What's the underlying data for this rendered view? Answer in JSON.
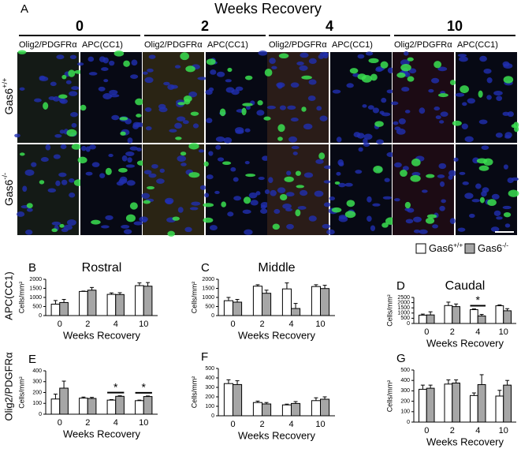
{
  "figure": {
    "panel_a": "A",
    "header": "Weeks Recovery",
    "timepoints": [
      "0",
      "2",
      "4",
      "10"
    ],
    "stains": [
      "Olig2/PDGFRα",
      "APC(CC1)"
    ],
    "genotypes": [
      {
        "label": "Gas6",
        "sup": "+/+"
      },
      {
        "label": "Gas6",
        "sup": "-/-"
      }
    ],
    "row_labels": [
      "APC(CC1)",
      "Olig2/PDGFRα"
    ],
    "legend": [
      {
        "label": "Gas6",
        "sup": "+/+",
        "color": "#ffffff"
      },
      {
        "label": "Gas6",
        "sup": "-/-",
        "color": "#a6a6a6"
      }
    ]
  },
  "chart_data": [
    {
      "type": "bar",
      "panel": "B",
      "title": "Rostral",
      "ylabel": "Cells/mm²",
      "xlabel": "Weeks Recovery",
      "categories": [
        "0",
        "2",
        "4",
        "10"
      ],
      "ylim": [
        0,
        2000
      ],
      "yticks": [
        0,
        500,
        1000,
        1500,
        2000
      ],
      "series": [
        {
          "color": "#ffffff",
          "values": [
            630,
            1330,
            1170,
            1650
          ],
          "errors": [
            200,
            20,
            80,
            150
          ]
        },
        {
          "color": "#a6a6a6",
          "values": [
            720,
            1400,
            1160,
            1620
          ],
          "errors": [
            170,
            150,
            100,
            200
          ]
        }
      ]
    },
    {
      "type": "bar",
      "panel": "C",
      "title": "Middle",
      "ylabel": "Cells/mm²",
      "xlabel": "Weeks Recovery",
      "categories": [
        "0",
        "2",
        "4",
        "10"
      ],
      "ylim": [
        0,
        2000
      ],
      "yticks": [
        0,
        500,
        1000,
        1500,
        2000
      ],
      "series": [
        {
          "color": "#ffffff",
          "values": [
            820,
            1620,
            1470,
            1600
          ],
          "errors": [
            180,
            80,
            330,
            100
          ]
        },
        {
          "color": "#a6a6a6",
          "values": [
            740,
            1230,
            390,
            1490
          ],
          "errors": [
            150,
            170,
            280,
            180
          ]
        }
      ]
    },
    {
      "type": "bar",
      "panel": "D",
      "title": "Caudal",
      "ylabel": "Cells/mm²",
      "xlabel": "Weeks Recovery",
      "categories": [
        "0",
        "2",
        "4",
        "10"
      ],
      "ylim": [
        0,
        2500
      ],
      "yticks": [
        0,
        500,
        1000,
        1500,
        2000,
        2500
      ],
      "series": [
        {
          "color": "#ffffff",
          "values": [
            800,
            1720,
            1330,
            1700
          ],
          "errors": [
            100,
            330,
            70,
            80
          ]
        },
        {
          "color": "#a6a6a6",
          "values": [
            820,
            1620,
            720,
            1220
          ],
          "errors": [
            300,
            250,
            150,
            200
          ]
        }
      ],
      "annotations": [
        {
          "text": "*",
          "x": "4"
        }
      ]
    },
    {
      "type": "bar",
      "panel": "E",
      "ylabel": "Cells/mm²",
      "xlabel": "Weeks Recovery",
      "categories": [
        "0",
        "2",
        "4",
        "10"
      ],
      "ylim": [
        0,
        400
      ],
      "yticks": [
        0,
        100,
        200,
        300,
        400
      ],
      "series": [
        {
          "color": "#ffffff",
          "values": [
            140,
            148,
            130,
            125
          ],
          "errors": [
            45,
            10,
            5,
            5
          ]
        },
        {
          "color": "#a6a6a6",
          "values": [
            240,
            145,
            165,
            163
          ],
          "errors": [
            65,
            10,
            5,
            5
          ]
        }
      ],
      "annotations": [
        {
          "text": "*",
          "x": "4"
        },
        {
          "text": "*",
          "x": "10"
        }
      ]
    },
    {
      "type": "bar",
      "panel": "F",
      "ylabel": "Cells/mm²",
      "xlabel": "Weeks Recovery",
      "categories": [
        "0",
        "2",
        "4",
        "10"
      ],
      "ylim": [
        0,
        500
      ],
      "yticks": [
        0,
        100,
        200,
        300,
        400,
        500
      ],
      "series": [
        {
          "color": "#ffffff",
          "values": [
            340,
            140,
            115,
            160
          ],
          "errors": [
            40,
            15,
            8,
            30
          ]
        },
        {
          "color": "#a6a6a6",
          "values": [
            330,
            125,
            130,
            175
          ],
          "errors": [
            40,
            15,
            20,
            25
          ]
        }
      ]
    },
    {
      "type": "bar",
      "panel": "G",
      "ylabel": "Cells/mm²",
      "xlabel": "Weeks Recovery",
      "categories": [
        "0",
        "2",
        "4",
        "10"
      ],
      "ylim": [
        0,
        500
      ],
      "yticks": [
        0,
        100,
        200,
        300,
        400,
        500
      ],
      "series": [
        {
          "color": "#ffffff",
          "values": [
            315,
            365,
            255,
            250
          ],
          "errors": [
            40,
            40,
            25,
            55
          ]
        },
        {
          "color": "#a6a6a6",
          "values": [
            325,
            375,
            360,
            355
          ],
          "errors": [
            30,
            30,
            95,
            45
          ]
        }
      ]
    }
  ]
}
